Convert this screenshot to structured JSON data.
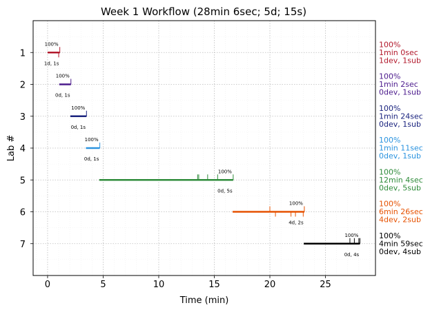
{
  "chart_data": {
    "type": "timeline",
    "title": "Week 1 Workflow (28min 6sec; 5d; 15s)",
    "xlabel": "Time (min)",
    "ylabel": "Lab #",
    "xlim": [
      -1.3,
      29.5
    ],
    "ylim": [
      0,
      8
    ],
    "y_inverted": true,
    "grid": true,
    "xticks": [
      0,
      5,
      10,
      15,
      20,
      25
    ],
    "labs": [
      {
        "lab": "1",
        "y": 1,
        "color": "#b2182b",
        "start": 0.0,
        "end": 1.1,
        "pct": "100%",
        "counts": "1d, 1s",
        "dev_ticks": [
          1.0
        ],
        "sub_ticks": [
          1.1
        ],
        "summary": [
          "100%",
          "1min 0sec",
          "1dev, 1sub"
        ]
      },
      {
        "lab": "2",
        "y": 2,
        "color": "#4b1a8c",
        "start": 1.05,
        "end": 2.1,
        "pct": "100%",
        "counts": "0d, 1s",
        "dev_ticks": [],
        "sub_ticks": [
          2.1
        ],
        "summary": [
          "100%",
          "1min 2sec",
          "0dev, 1sub"
        ]
      },
      {
        "lab": "3",
        "y": 3,
        "color": "#1a237e",
        "start": 2.05,
        "end": 3.5,
        "pct": "100%",
        "counts": "0d, 1s",
        "dev_ticks": [],
        "sub_ticks": [
          3.5
        ],
        "summary": [
          "100%",
          "1min 24sec",
          "0dev, 1sub"
        ]
      },
      {
        "lab": "4",
        "y": 4,
        "color": "#2b93df",
        "start": 3.45,
        "end": 4.7,
        "pct": "100%",
        "counts": "0d, 1s",
        "dev_ticks": [],
        "sub_ticks": [
          4.7
        ],
        "summary": [
          "100%",
          "1min 11sec",
          "0dev, 1sub"
        ]
      },
      {
        "lab": "5",
        "y": 5,
        "color": "#2e8b3a",
        "start": 4.65,
        "end": 16.7,
        "pct": "100%",
        "counts": "0d, 5s",
        "dev_ticks": [],
        "sub_ticks": [
          13.5,
          13.6,
          14.4,
          15.3,
          16.7
        ],
        "summary": [
          "100%",
          "12min 4sec",
          "0dev, 5sub"
        ]
      },
      {
        "lab": "6",
        "y": 6,
        "color": "#e65100",
        "start": 16.65,
        "end": 23.1,
        "pct": "100%",
        "counts": "4d, 2s",
        "dev_ticks": [
          20.5,
          21.9,
          22.3,
          23.0
        ],
        "sub_ticks": [
          20.0,
          23.1
        ],
        "summary": [
          "100%",
          "6min 26sec",
          "4dev, 2sub"
        ]
      },
      {
        "lab": "7",
        "y": 7,
        "color": "#000000",
        "start": 23.05,
        "end": 28.1,
        "pct": "100%",
        "counts": "0d, 4s",
        "dev_ticks": [],
        "sub_ticks": [
          27.2,
          27.6,
          28.0,
          28.1
        ],
        "summary": [
          "100%",
          "4min 59sec",
          "0dev, 4sub"
        ]
      }
    ]
  }
}
